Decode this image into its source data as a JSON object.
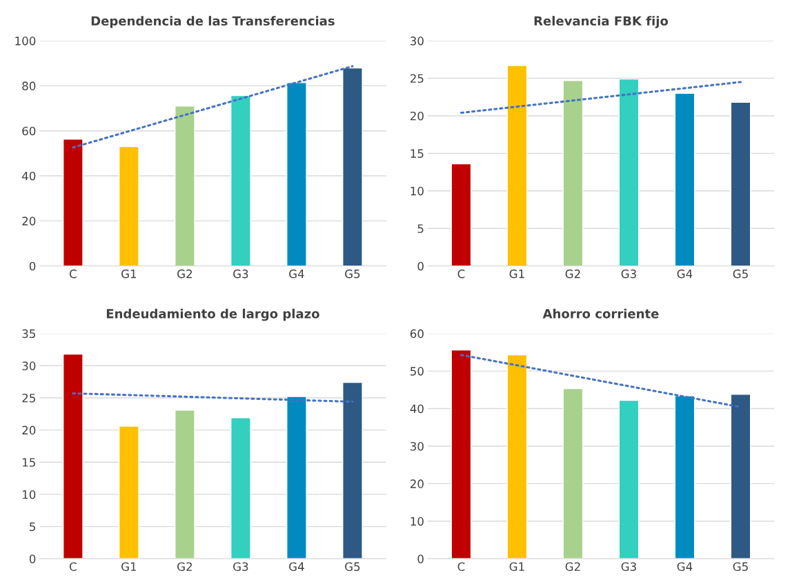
{
  "chart_data": [
    {
      "type": "bar",
      "title": "Dependencia de las Transferencias",
      "categories": [
        "C",
        "G1",
        "G2",
        "G3",
        "G4",
        "G5"
      ],
      "values": [
        56.3,
        53,
        71,
        75.7,
        81.4,
        87.9
      ],
      "colors": [
        "#c00000",
        "#ffc000",
        "#a9d18e",
        "#33cfbf",
        "#008bc0",
        "#2e5984"
      ],
      "ylim": [
        0,
        100
      ],
      "yticks": [
        0,
        20,
        40,
        60,
        80,
        100
      ],
      "grid": "y",
      "series": [
        {
          "type": "line",
          "x": [
            "C",
            "G5"
          ],
          "values": [
            52.6,
            88.7
          ],
          "color": "#4472c4",
          "line_style": "dotted"
        }
      ]
    },
    {
      "type": "bar",
      "title": "Relevancia FBK fijo",
      "categories": [
        "C",
        "G1",
        "G2",
        "G3",
        "G4",
        "G5"
      ],
      "values": [
        13.6,
        26.7,
        24.7,
        24.9,
        23,
        21.8
      ],
      "colors": [
        "#c00000",
        "#ffc000",
        "#a9d18e",
        "#33cfbf",
        "#008bc0",
        "#2e5984"
      ],
      "ylim": [
        0,
        30
      ],
      "yticks": [
        0,
        5,
        10,
        15,
        20,
        25,
        30
      ],
      "grid": "y",
      "series": [
        {
          "type": "line",
          "x": [
            "C",
            "G5"
          ],
          "values": [
            20.4,
            24.5
          ],
          "color": "#4472c4",
          "line_style": "dotted"
        }
      ]
    },
    {
      "type": "bar",
      "title": "Endeudamiento de largo plazo",
      "categories": [
        "C",
        "G1",
        "G2",
        "G3",
        "G4",
        "G5"
      ],
      "values": [
        31.8,
        20.6,
        23.1,
        21.9,
        25.2,
        27.4
      ],
      "colors": [
        "#c00000",
        "#ffc000",
        "#a9d18e",
        "#33cfbf",
        "#008bc0",
        "#2e5984"
      ],
      "ylim": [
        0,
        35
      ],
      "yticks": [
        0,
        5,
        10,
        15,
        20,
        25,
        30,
        35
      ],
      "grid": "y",
      "series": [
        {
          "type": "line",
          "x": [
            "C",
            "G5"
          ],
          "values": [
            25.7,
            24.4
          ],
          "color": "#4472c4",
          "line_style": "dotted"
        }
      ]
    },
    {
      "type": "bar",
      "title": "Ahorro corriente",
      "categories": [
        "C",
        "G1",
        "G2",
        "G3",
        "G4",
        "G5"
      ],
      "values": [
        55.6,
        54.3,
        45.3,
        42.2,
        43.4,
        43.8
      ],
      "colors": [
        "#c00000",
        "#ffc000",
        "#a9d18e",
        "#33cfbf",
        "#008bc0",
        "#2e5984"
      ],
      "ylim": [
        0,
        60
      ],
      "yticks": [
        0,
        10,
        20,
        30,
        40,
        50,
        60
      ],
      "grid": "y",
      "series": [
        {
          "type": "line",
          "x": [
            "C",
            "G5"
          ],
          "values": [
            54.3,
            40.4
          ],
          "color": "#4472c4",
          "line_style": "dotted"
        }
      ]
    }
  ]
}
